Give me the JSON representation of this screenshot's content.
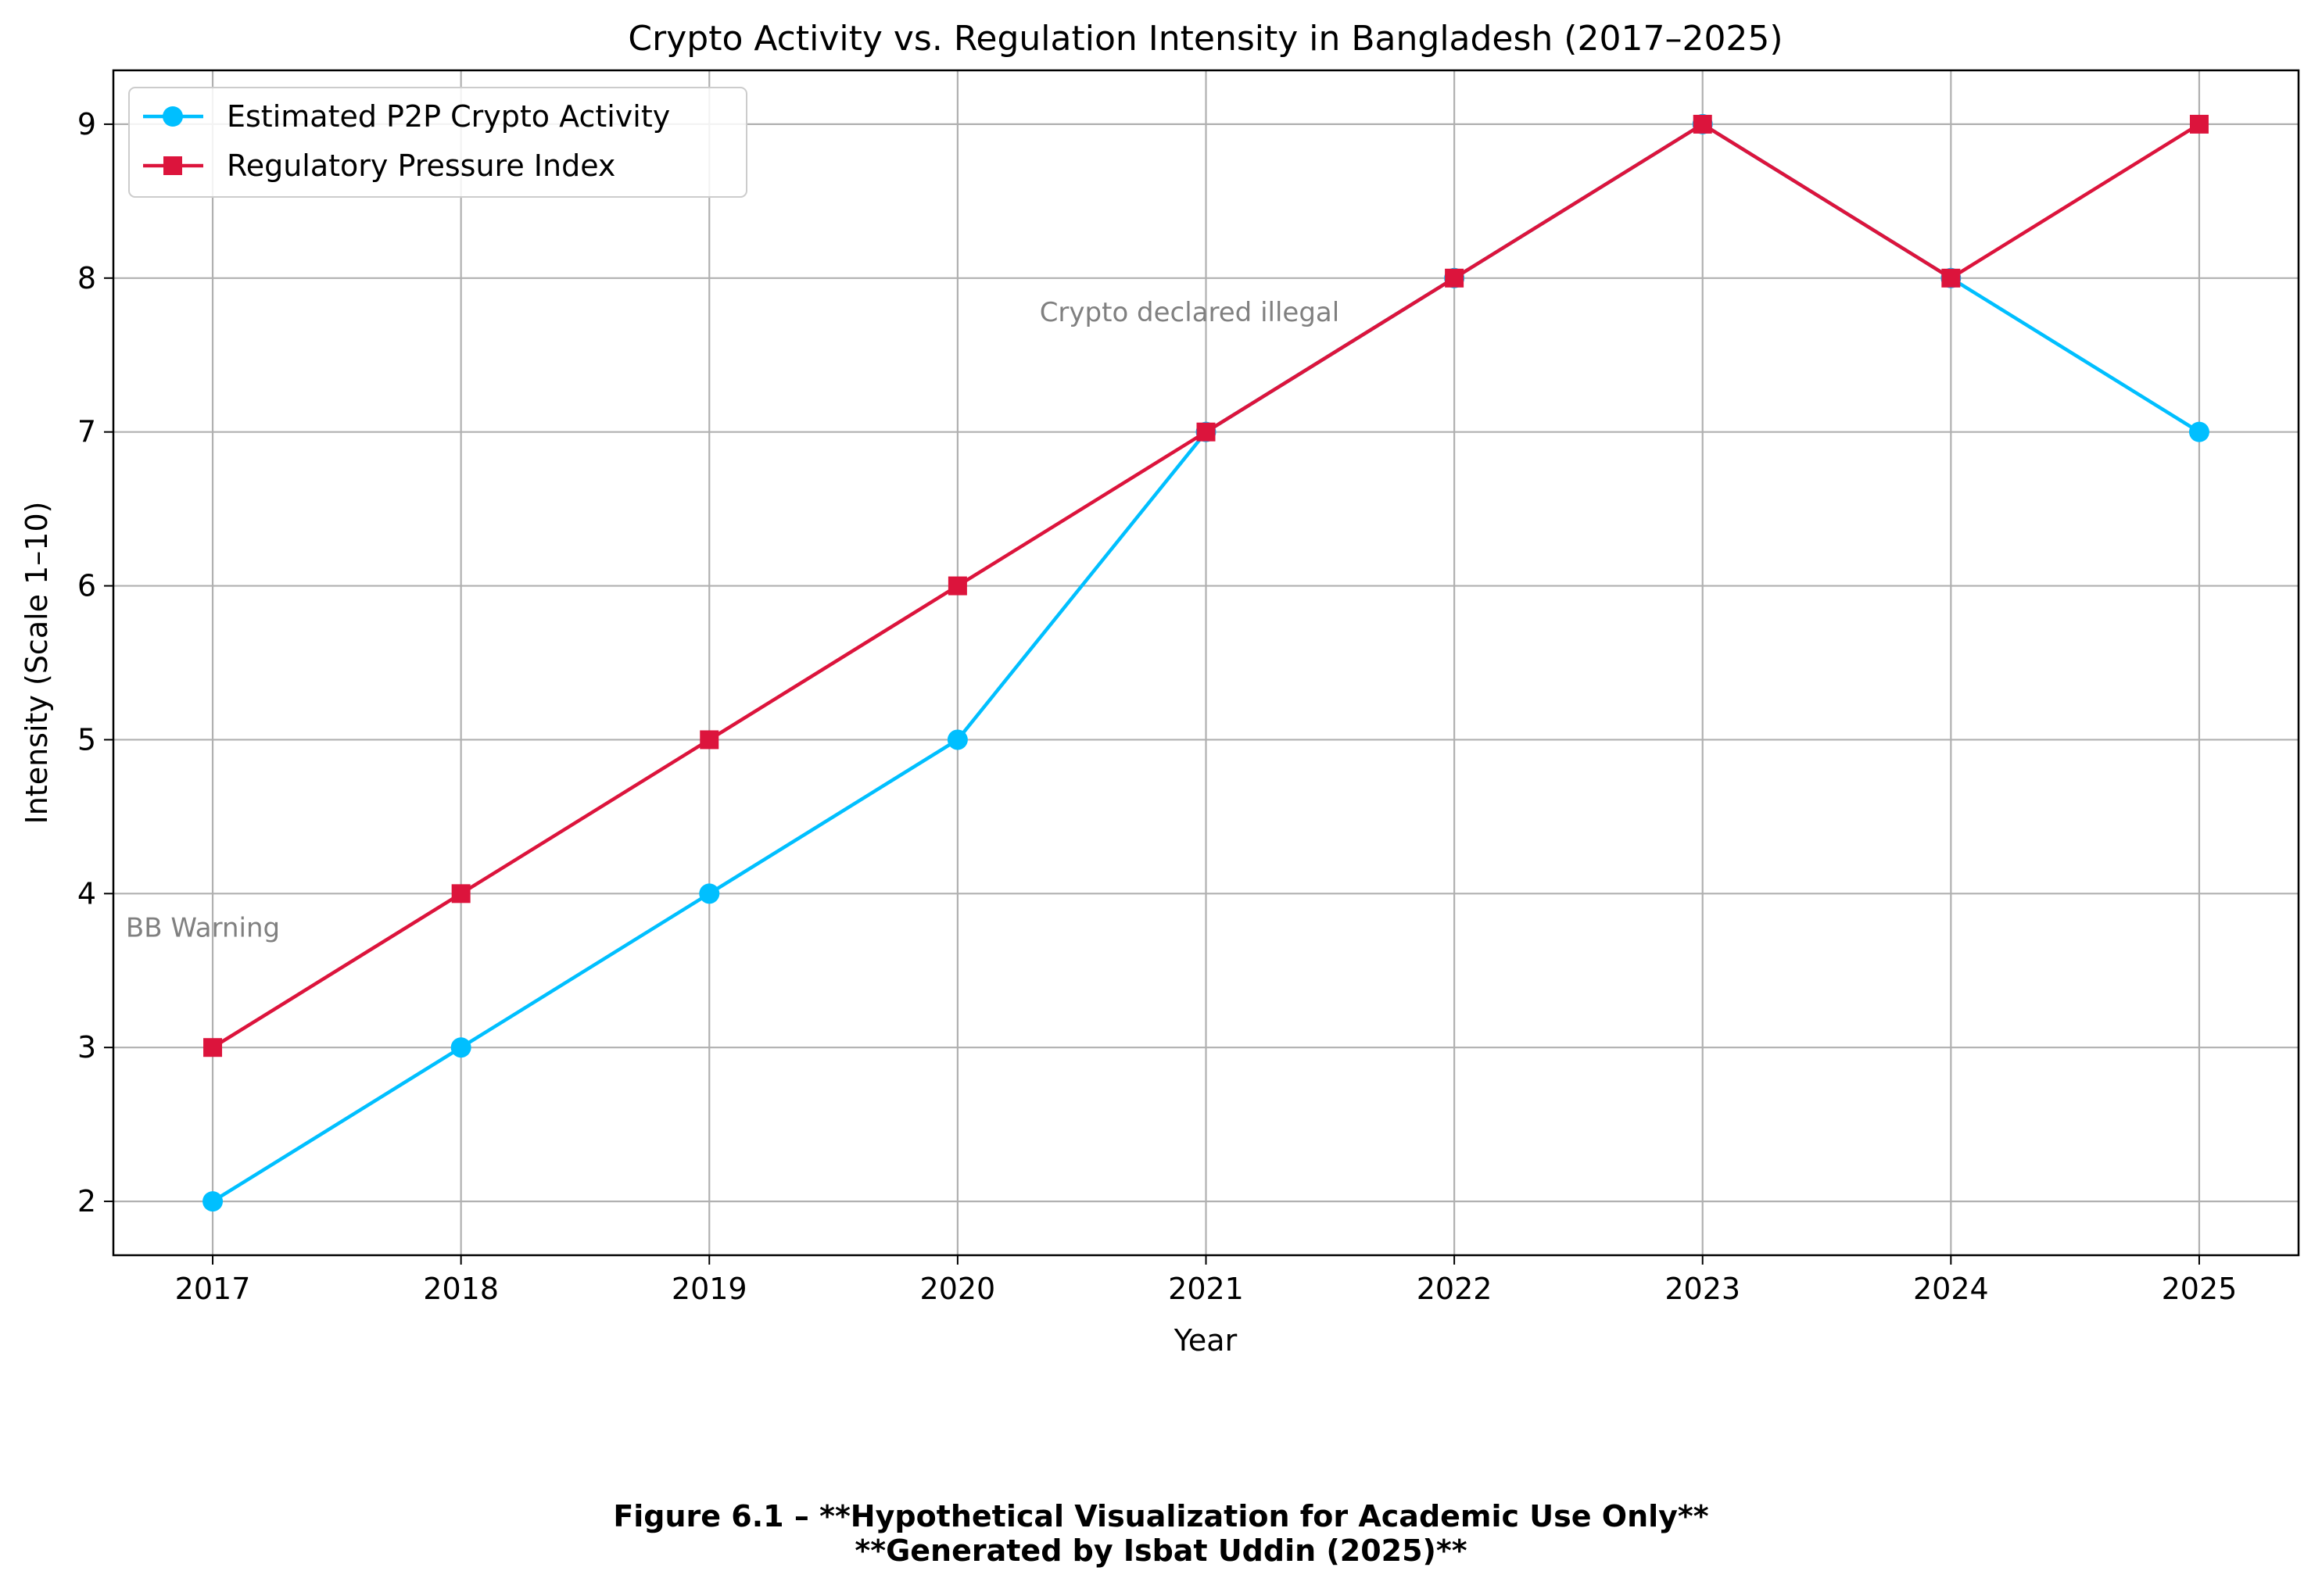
{
  "chart_data": {
    "type": "line",
    "title": "Crypto Activity vs. Regulation Intensity in Bangladesh (2017–2025)",
    "xlabel": "Year",
    "ylabel": "Intensity (Scale 1–10)",
    "x": [
      2017,
      2018,
      2019,
      2020,
      2021,
      2022,
      2023,
      2024,
      2025
    ],
    "x_tick_labels": [
      "2017",
      "2018",
      "2019",
      "2020",
      "2021",
      "2022",
      "2023",
      "2024",
      "2025"
    ],
    "y_ticks": [
      2,
      3,
      4,
      5,
      6,
      7,
      8,
      9
    ],
    "y_tick_labels": [
      "2",
      "3",
      "4",
      "5",
      "6",
      "7",
      "8",
      "9"
    ],
    "xlim": [
      2016.6,
      2025.4
    ],
    "ylim": [
      1.65,
      9.35
    ],
    "grid": true,
    "legend_position": "upper-left",
    "series": [
      {
        "name": "Estimated P2P Crypto Activity",
        "values": [
          2,
          3,
          4,
          5,
          7,
          8,
          9,
          8,
          7
        ],
        "color": "#00bfff",
        "marker": "circle"
      },
      {
        "name": "Regulatory Pressure Index",
        "values": [
          3,
          4,
          5,
          6,
          7,
          8,
          9,
          8,
          9
        ],
        "color": "#dc143c",
        "marker": "square"
      }
    ],
    "annotations": [
      {
        "text": "BB Warning",
        "x": 2016.65,
        "y": 3.72
      },
      {
        "text": "Crypto declared illegal",
        "x": 2020.33,
        "y": 7.72
      }
    ]
  },
  "caption": {
    "line1": "Figure 6.1 – **Hypothetical Visualization for Academic Use Only**",
    "line2": "**Generated by Isbat Uddin (2025)**"
  }
}
